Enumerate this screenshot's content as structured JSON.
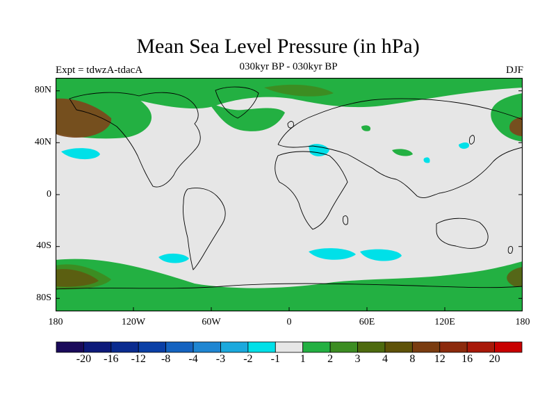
{
  "title": "Mean Sea Level Pressure (in hPa)",
  "subtitle": "030kyr BP - 030kyr BP",
  "left_label": "Expt = tdwzA-tdacA",
  "right_label": "DJF",
  "lat_ticks": [
    "80N",
    "40N",
    "0",
    "40S",
    "80S"
  ],
  "lon_ticks": [
    "180",
    "120W",
    "60W",
    "0",
    "60E",
    "120E",
    "180"
  ],
  "colorbar": {
    "colors": [
      "#1a0a5a",
      "#0d1a7a",
      "#0a2b8f",
      "#0a3fa6",
      "#1563c0",
      "#1f86d2",
      "#1ba9dd",
      "#00e0e8",
      "#e6e6e6",
      "#23b042",
      "#3c8d22",
      "#4d6a0e",
      "#5e5208",
      "#7a3c10",
      "#8c2a0c",
      "#a81808",
      "#c80000"
    ],
    "labels": [
      "-20",
      "-16",
      "-12",
      "-8",
      "-4",
      "-3",
      "-2",
      "-1",
      "1",
      "2",
      "3",
      "4",
      "8",
      "12",
      "16",
      "20"
    ]
  },
  "map": {
    "background_color": "#e6e6e6",
    "colors": {
      "light_green": "#23b042",
      "dark_green": "#3c8d22",
      "brown": "#7a4a1c",
      "olive": "#5e5a10",
      "cyan": "#00e0e8"
    }
  }
}
